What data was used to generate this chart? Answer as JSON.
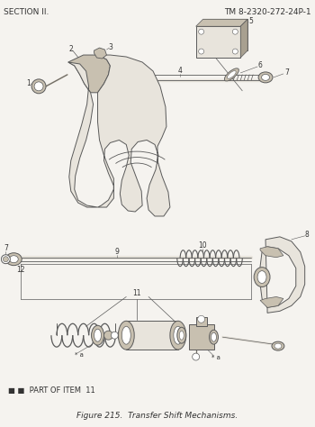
{
  "background_color": "#f5f3ef",
  "header_left": "SECTION II.",
  "header_right": "TM 8-2320-272-24P-1",
  "caption": "Figure 215.  Transfer Shift Mechanisms.",
  "footer_note": "■ ■  PART OF ITEM  11",
  "lc": "#5a5a5a",
  "fc_light": "#e8e4dc",
  "fc_med": "#c8c0b0",
  "fc_dark": "#a8a090",
  "header_fontsize": 6.5,
  "caption_fontsize": 6.5,
  "label_fontsize": 6.0
}
